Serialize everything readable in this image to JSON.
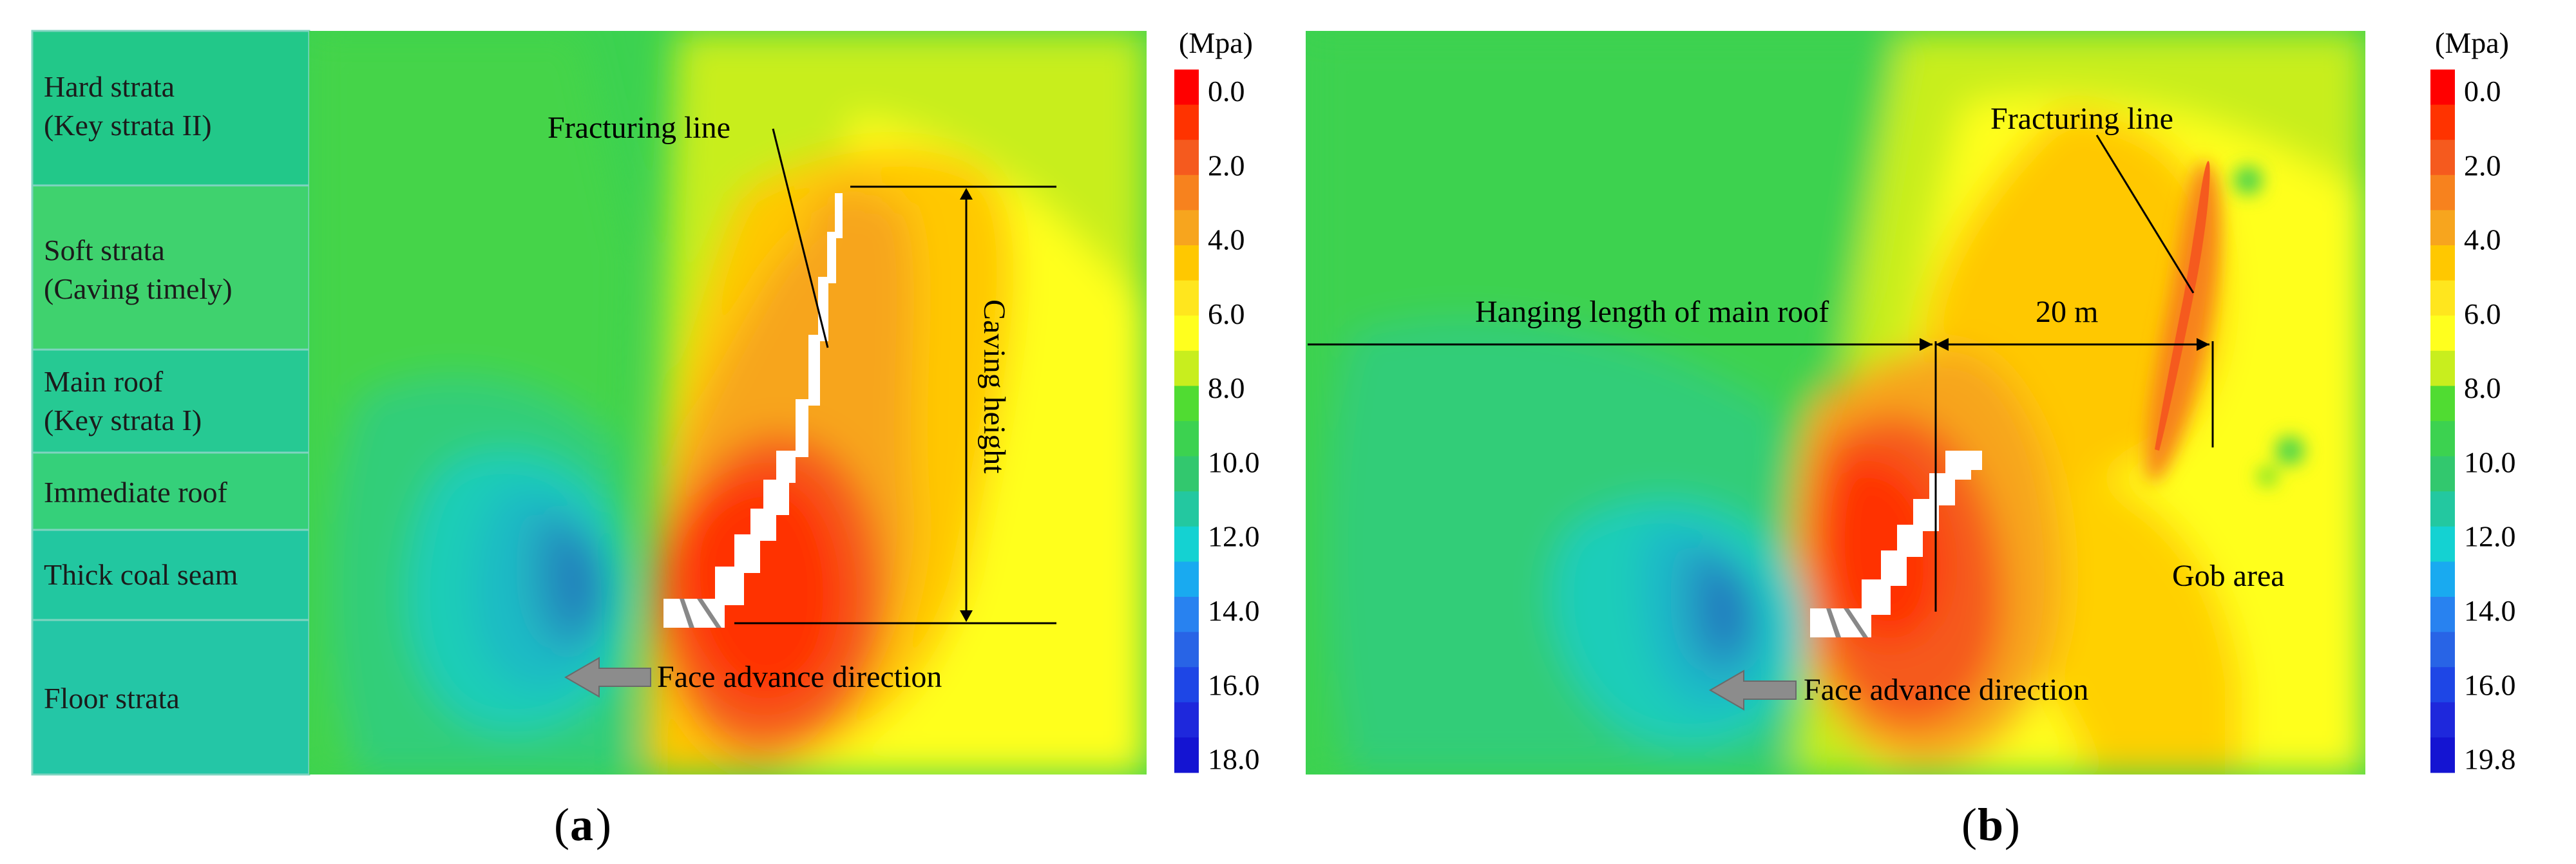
{
  "figure_a": {
    "strata_labels": [
      {
        "line1": "Hard strata",
        "line2": "(Key strata II)"
      },
      {
        "line1": "Soft strata",
        "line2": "(Caving timely)"
      },
      {
        "line1": "Main roof",
        "line2": "(Key strata I)"
      },
      {
        "line1": "Immediate roof",
        "line2": ""
      },
      {
        "line1": "Thick coal seam",
        "line2": ""
      },
      {
        "line1": "Floor strata",
        "line2": ""
      }
    ],
    "fracturing_line": "Fracturing line",
    "caving_height": "Caving height",
    "face_advance": "Face advance direction",
    "unit": "(Mpa)",
    "scale_ticks": [
      "0.0",
      "2.0",
      "4.0",
      "6.0",
      "8.0",
      "10.0",
      "12.0",
      "14.0",
      "16.0",
      "18.0"
    ],
    "caption_open": "(",
    "caption_letter": "a",
    "caption_close": ")"
  },
  "figure_b": {
    "fracturing_line": "Fracturing line",
    "hanging_length": "Hanging length of main roof",
    "distance": "20 m",
    "gob_area": "Gob area",
    "face_advance": "Face advance direction",
    "unit": "(Mpa)",
    "scale_ticks": [
      "0.0",
      "2.0",
      "4.0",
      "6.0",
      "8.0",
      "10.0",
      "12.0",
      "14.0",
      "16.0",
      "19.8"
    ],
    "caption_open": "(",
    "caption_letter": "b",
    "caption_close": ")"
  },
  "colors": {
    "scale": [
      "#ff0000",
      "#ff3300",
      "#f55a1e",
      "#f7821e",
      "#f7a51e",
      "#ffc800",
      "#ffe61e",
      "#ffff1e",
      "#c8ee1e",
      "#50dc32",
      "#3cd250",
      "#32c86e",
      "#23c8a0",
      "#14d2d2",
      "#19aaf0",
      "#2882f0",
      "#2864e6",
      "#1e46e6",
      "#1e28dc",
      "#1414d2"
    ]
  }
}
